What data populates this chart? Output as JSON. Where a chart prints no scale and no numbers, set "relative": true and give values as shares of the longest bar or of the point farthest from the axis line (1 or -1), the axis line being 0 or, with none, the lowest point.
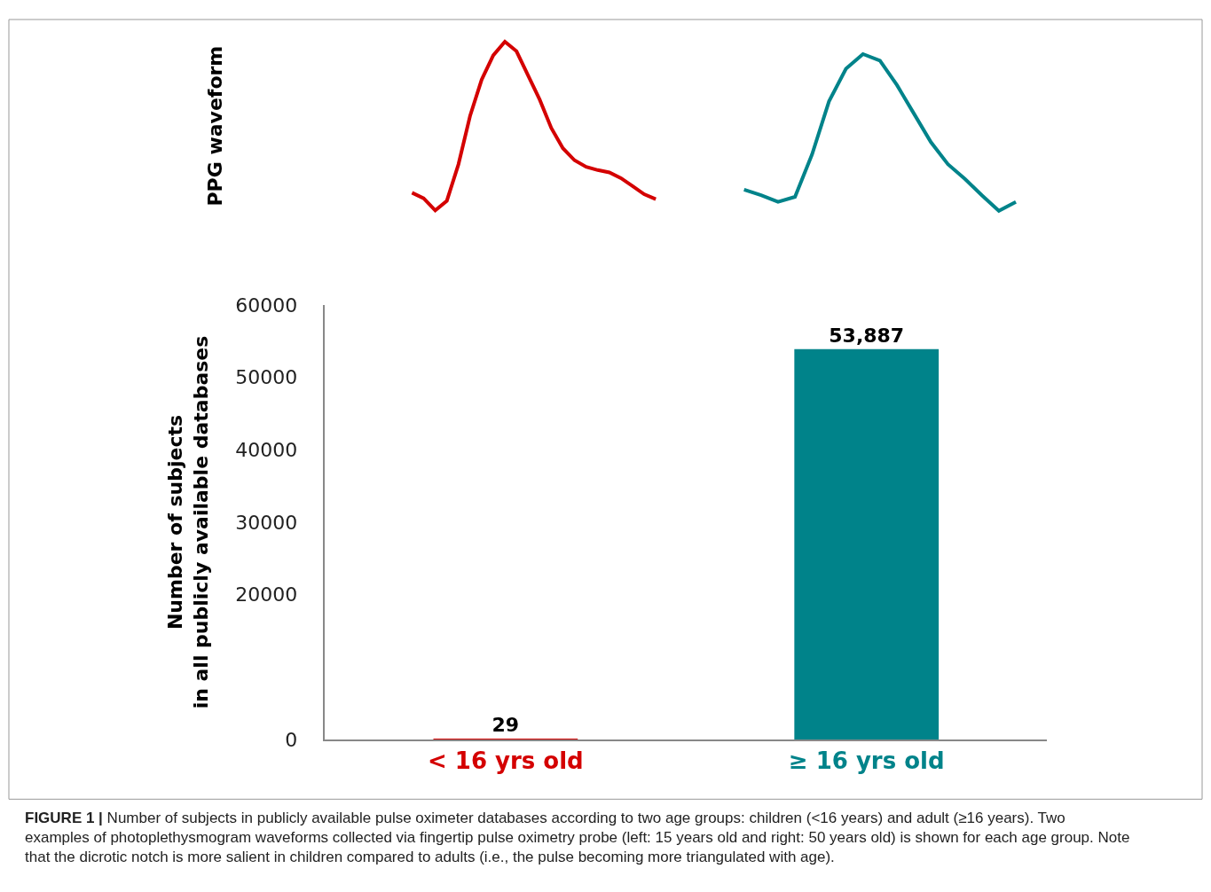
{
  "chart_data": [
    {
      "type": "line",
      "ylabel": "PPG waveform",
      "relative": true,
      "marker": "none",
      "line_style": "solid",
      "categories": [
        null,
        null,
        null,
        null,
        null,
        null,
        null,
        null,
        null,
        null,
        null,
        null,
        null,
        null,
        null,
        null,
        null,
        null,
        null,
        null,
        null,
        null
      ],
      "series": [
        {
          "color": "#d40000",
          "values": [
            0.105,
            0.072,
            0,
            0.057,
            0.273,
            0.56,
            0.775,
            0.919,
            1,
            0.943,
            0.799,
            0.656,
            0.488,
            0.368,
            0.297,
            0.258,
            0.239,
            0.225,
            0.191,
            0.144,
            0.096,
            0.067
          ]
        }
      ]
    },
    {
      "type": "line",
      "relative": true,
      "marker": "none",
      "line_style": "solid",
      "categories": [
        null,
        null,
        null,
        null,
        null,
        null,
        null,
        null,
        null,
        null,
        null,
        null,
        null,
        null,
        null,
        null,
        null
      ],
      "series": [
        {
          "color": "#00838a",
          "values": [
            0.135,
            0.099,
            0.057,
            0.089,
            0.359,
            0.698,
            0.906,
            1,
            0.958,
            0.802,
            0.62,
            0.438,
            0.297,
            0.203,
            0.099,
            0,
            0.057
          ]
        }
      ]
    },
    {
      "type": "bar",
      "ylabel": "Number of subjects\nin all publicly available databases",
      "categories": [
        "< 16 yrs old",
        "≥ 16 yrs old"
      ],
      "values": [
        29,
        53887
      ],
      "value_labels": [
        "29",
        "53,887"
      ],
      "colors": [
        "#d40000",
        "#00838a"
      ],
      "ylim": [
        0,
        60000
      ],
      "yticks": [
        0,
        20000,
        30000,
        40000,
        50000,
        60000
      ],
      "annotations": [
        "FIGURE 1 | Number of subjects in publicly available pulse oximeter databases according to two age groups: children (<16 years) and adult (≥16 years). Two\nexamples of photoplethysmogram waveforms collected via fingertip pulse oximetry probe (left: 15 years old and right: 50 years old) is shown for each age group. Note\nthat the dicrotic notch is more salient in children compared to adults (i.e., the pulse becoming more triangulated with age)."
      ]
    }
  ]
}
